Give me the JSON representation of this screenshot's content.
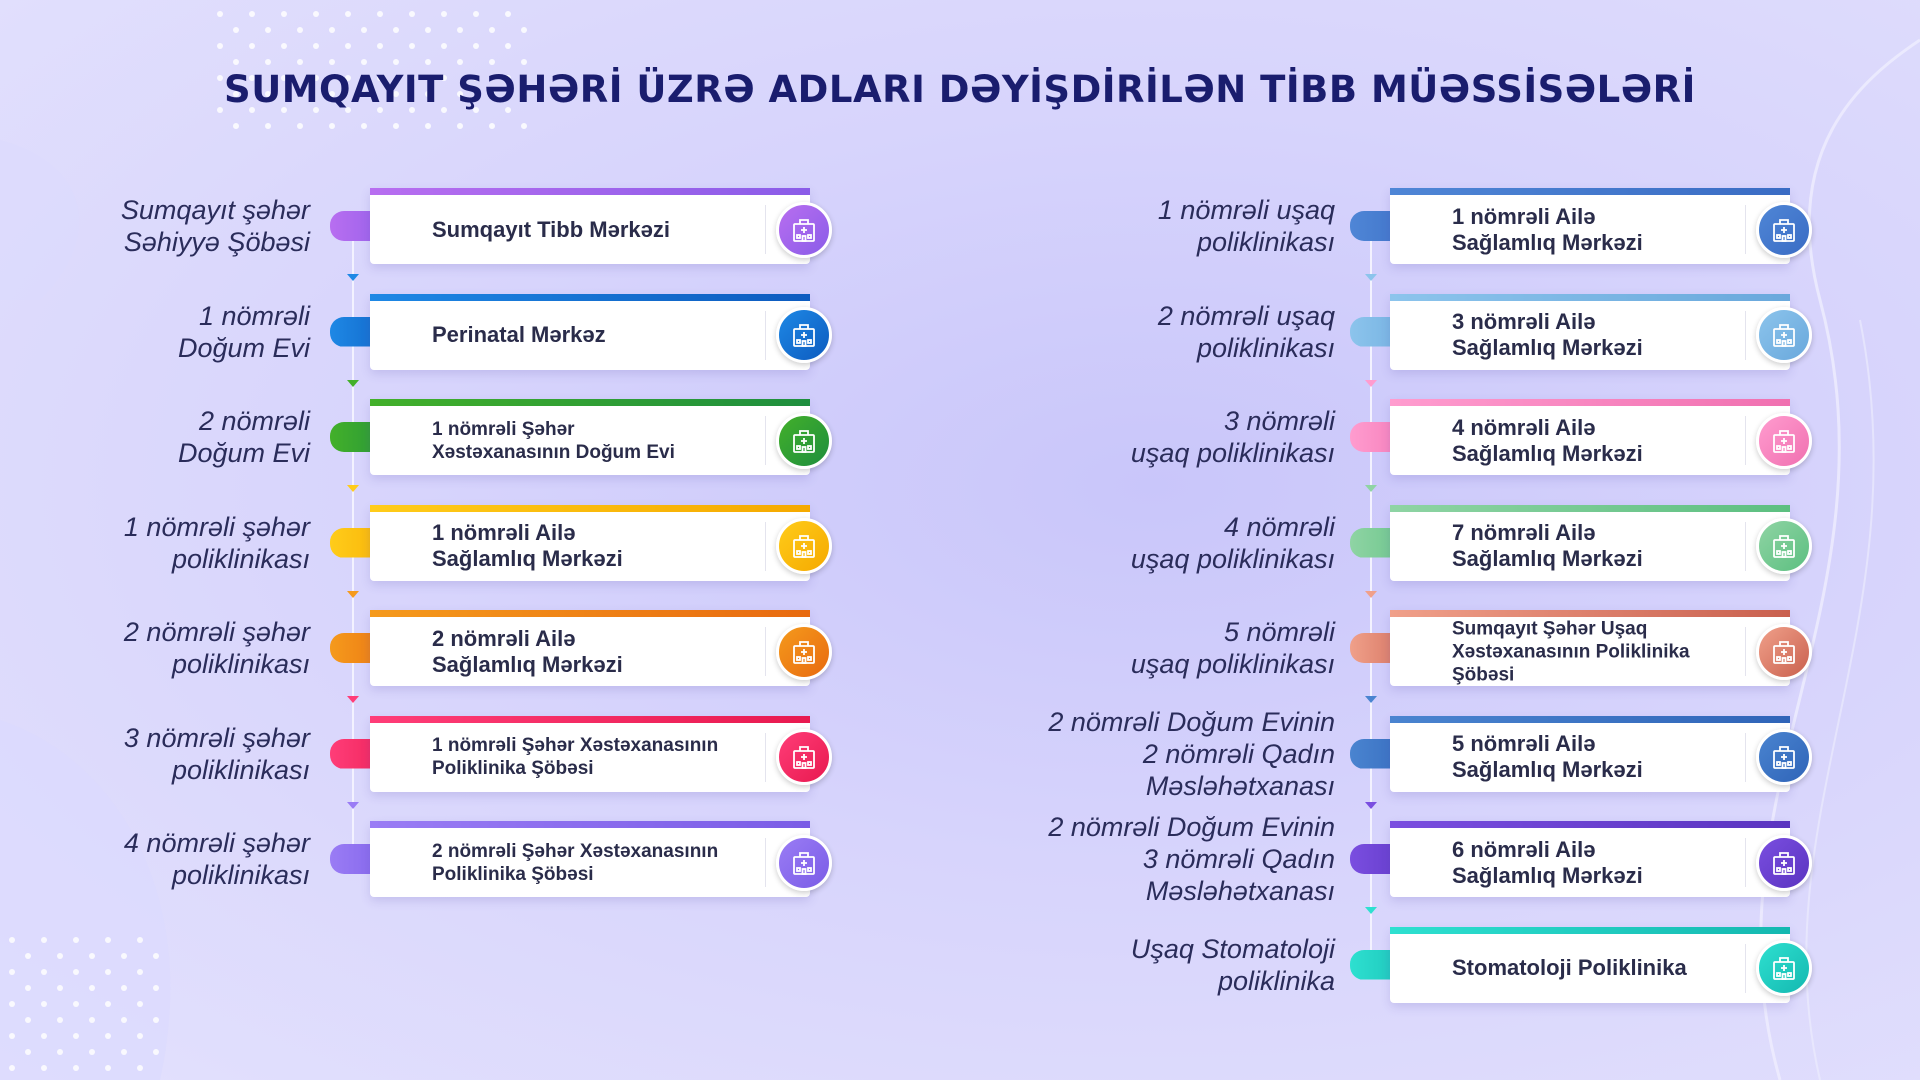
{
  "title": "SUMQAYIT ŞƏHƏRİ ÜZRƏ ADLARI DƏYİŞDİRİLƏN TİBB MÜƏSSİSƏLƏRİ",
  "left": [
    {
      "old": "Sumqayıt şəhər\nSəhiyyə Şöbəsi",
      "new": "Sumqayıt Tibb Mərkəzi",
      "color": "#b86ef0",
      "color2": "#8a5ce8",
      "icon": "hospital-icon"
    },
    {
      "old": "1 nömrəli\nDoğum Evi",
      "new": "Perinatal Mərkəz",
      "color": "#1e88e5",
      "color2": "#0d5bbf",
      "icon": "hospital-icon"
    },
    {
      "old": "2 nömrəli\nDoğum Evi",
      "new": "1 nömrəli Şəhər\nXəstəxanasının Doğum Evi",
      "color": "#43b02a",
      "color2": "#1e8e3e",
      "icon": "hospital-icon"
    },
    {
      "old": "1 nömrəli şəhər\npoliklinikası",
      "new": "1 nömrəli Ailə\nSağlamlıq Mərkəzi",
      "color": "#ffcc1a",
      "color2": "#f5a900",
      "icon": "hospital-icon"
    },
    {
      "old": "2 nömrəli şəhər\npoliklinikası",
      "new": "2 nömrəli Ailə\nSağlamlıq Mərkəzi",
      "color": "#f59a1c",
      "color2": "#e86a10",
      "icon": "hospital-icon"
    },
    {
      "old": "3 nömrəli şəhər\npoliklinikası",
      "new": "1 nömrəli Şəhər Xəstəxanasının\nPoliklinika Şöbəsi",
      "color": "#ff3d78",
      "color2": "#e8194f",
      "icon": "hospital-icon"
    },
    {
      "old": "4 nömrəli şəhər\npoliklinikası",
      "new": "2 nömrəli Şəhər Xəstəxanasının\nPoliklinika Şöbəsi",
      "color": "#9a7cf5",
      "color2": "#7a5ce6",
      "icon": "hospital-icon"
    }
  ],
  "right": [
    {
      "old": "1 nömrəli uşaq\npoliklinikası",
      "new": "1 nömrəli Ailə\nSağlamlıq Mərkəzi",
      "color": "#4f86d6",
      "color2": "#3a6cc4",
      "icon": "hospital-icon"
    },
    {
      "old": "2 nömrəli uşaq\npoliklinikası",
      "new": "3 nömrəli Ailə\nSağlamlıq Mərkəzi",
      "color": "#8cc4ec",
      "color2": "#69a8dc",
      "icon": "hospital-icon"
    },
    {
      "old": "3 nömrəli\nuşaq poliklinikası",
      "new": "4 nömrəli Ailə\nSağlamlıq Mərkəzi",
      "color": "#ff9ccf",
      "color2": "#f070b0",
      "icon": "hospital-icon"
    },
    {
      "old": "4 nömrəli\nuşaq poliklinikası",
      "new": "7 nömrəli Ailə\nSağlamlıq Mərkəzi",
      "color": "#8fd4a4",
      "color2": "#5cbf80",
      "icon": "hospital-icon"
    },
    {
      "old": "5 nömrəli\nuşaq poliklinikası",
      "new": "Sumqayıt Şəhər Uşaq\nXəstəxanasının Poliklinika Şöbəsi",
      "color": "#f0a08a",
      "color2": "#c9604e",
      "icon": "hospital-icon"
    },
    {
      "old": "2 nömrəli Doğum Evinin\n2 nömrəli Qadın Məsləhətxanası",
      "new": "5 nömrəli Ailə\nSağlamlıq Mərkəzi",
      "color": "#4a84d0",
      "color2": "#2f64b8",
      "icon": "hospital-icon"
    },
    {
      "old": "2 nömrəli Doğum Evinin\n3 nömrəli Qadın Məsləhətxanası",
      "new": "6 nömrəli Ailə\nSağlamlıq Mərkəzi",
      "color": "#7a4ee0",
      "color2": "#5a34c0",
      "icon": "hospital-icon"
    },
    {
      "old": "Uşaq Stomatoloji\npoliklinika",
      "new": "Stomatoloji Poliklinika",
      "color": "#2ee0d0",
      "color2": "#14b8b0",
      "icon": "hospital-icon"
    }
  ]
}
